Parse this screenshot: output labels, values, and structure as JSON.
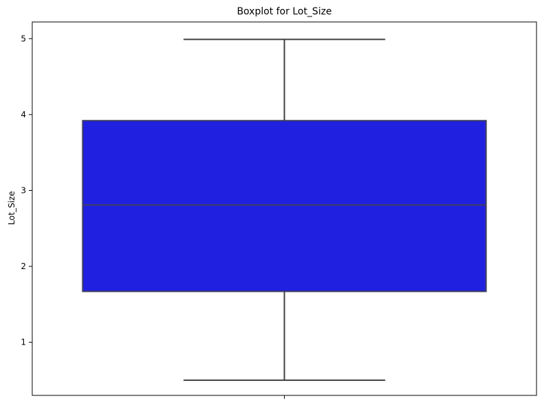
{
  "chart_data": {
    "type": "boxplot",
    "title": "Boxplot for Lot_Size",
    "ylabel": "Lot_Size",
    "xlabel": "",
    "ylim": [
      0.3,
      5.22
    ],
    "yticks": [
      1,
      2,
      3,
      4,
      5
    ],
    "ytick_labels": [
      "1",
      "2",
      "3",
      "4",
      "5"
    ],
    "grid": false,
    "box": {
      "min": 0.5,
      "q1": 1.67,
      "median": 2.81,
      "q3": 3.92,
      "max": 4.99
    },
    "colors": {
      "box_fill": "#2020e0",
      "box_edge": "#3f3f5f",
      "whisker": "#3f3f3f",
      "axes": "#000000"
    }
  }
}
